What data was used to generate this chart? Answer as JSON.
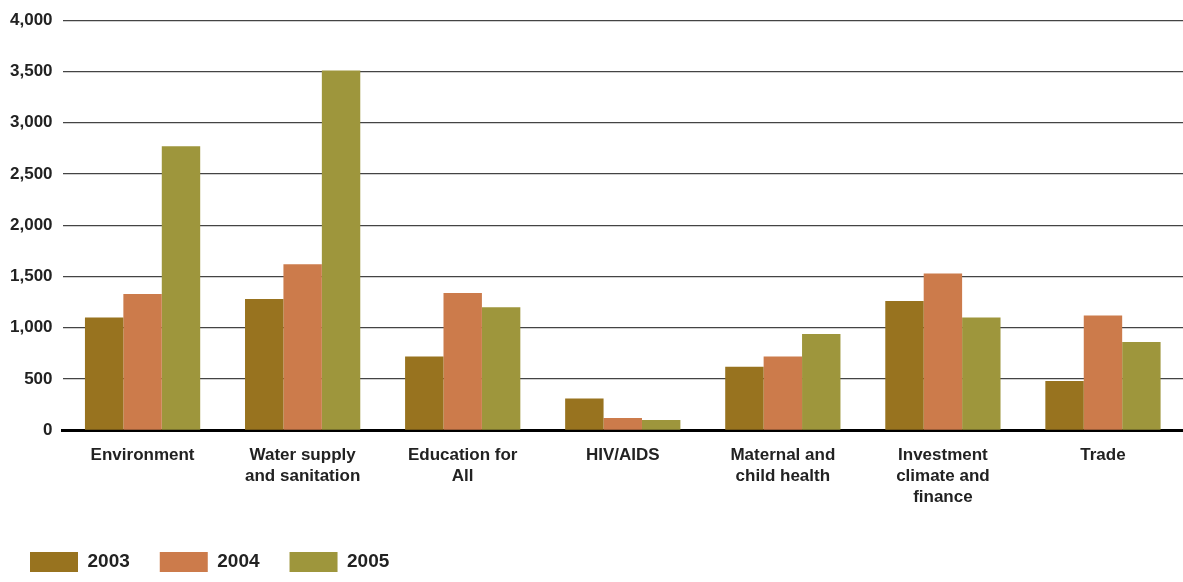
{
  "chart_data": {
    "type": "bar",
    "categories": [
      "Environment",
      "Water supply and sanitation",
      "Education for All",
      "HIV/AIDS",
      "Maternal and child health",
      "Investment climate and finance",
      "Trade"
    ],
    "series": [
      {
        "name": "2003",
        "color": "#98731f",
        "values": [
          1100,
          1280,
          720,
          310,
          620,
          1260,
          480
        ]
      },
      {
        "name": "2004",
        "color": "#cc7b4b",
        "values": [
          1330,
          1620,
          1340,
          120,
          720,
          1530,
          1120
        ]
      },
      {
        "name": "2005",
        "color": "#9e963c",
        "values": [
          2770,
          3510,
          1200,
          100,
          940,
          1100,
          860
        ]
      }
    ],
    "ylim": [
      0,
      4000
    ],
    "yticks": [
      0,
      500,
      {
        "value": 1000,
        "label": "1,000"
      },
      {
        "value": 1500,
        "label": "1,500"
      },
      {
        "value": 2000,
        "label": "2,000"
      },
      {
        "value": 2500,
        "label": "2,500"
      },
      {
        "value": 3000,
        "label": "3,000"
      },
      {
        "value": 3500,
        "label": "3,500"
      },
      {
        "value": 4000,
        "label": "4,000"
      }
    ],
    "grid": "y",
    "legend": "bottom left"
  }
}
